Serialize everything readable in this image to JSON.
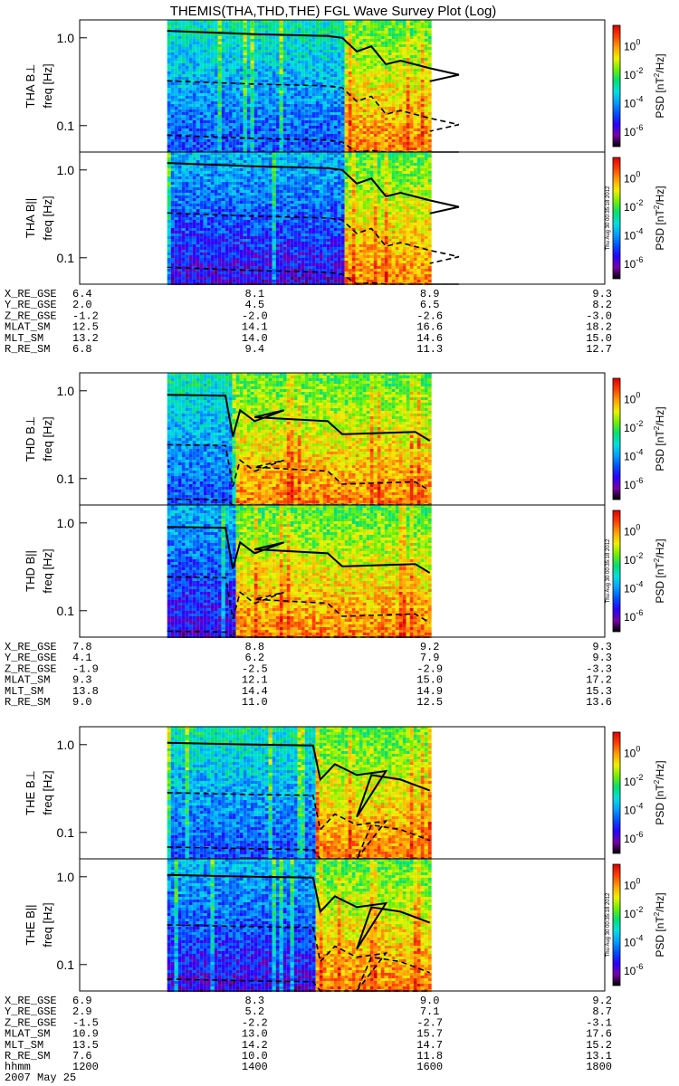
{
  "chart_data": {
    "type": "heatmap",
    "title": "THEMIS(THA,THD,THE) FGL Wave Survey Plot (Log)",
    "ylabel": "freq [Hz]",
    "ylim": [
      0.05,
      1.6
    ],
    "yscale": "log",
    "yticks": [
      "1.0",
      "0.1"
    ],
    "colorbar": {
      "label": "PSD [nT",
      "label_sup": "2",
      "label_tail": "/Hz]",
      "tick_bases": [
        "10",
        "10",
        "10",
        "10"
      ],
      "tick_exps": [
        "0",
        "-2",
        "-4",
        "-6"
      ],
      "range_log": [
        -7,
        1.5
      ],
      "colors": [
        "#000000",
        "#7a00a8",
        "#2a00ff",
        "#0050ff",
        "#00a0ff",
        "#00e0e0",
        "#00e070",
        "#70f000",
        "#f0f000",
        "#ffa000",
        "#ff4000",
        "#dd0000"
      ]
    },
    "time_range_hhmm": [
      1200,
      1800
    ],
    "timestamp": "Thu Aug 30 00:35:18 2012",
    "xaxis_label_hhmm": "hhmm",
    "xaxis_values_hhmm": [
      "1200",
      "1400",
      "1600",
      "1800"
    ],
    "date": "2007 May 25",
    "groups": [
      {
        "probe": "THA",
        "panels": [
          {
            "label": "THA B⊥"
          },
          {
            "label": "THA B||"
          }
        ],
        "data_start_hhmm": 1300,
        "data_end_hhmm": 1600,
        "onset_hhmm": 1500,
        "gyro_curve": {
          "t": [
            1300,
            1400,
            1450,
            1500,
            1510,
            1520,
            1530,
            1540,
            1560,
            1580,
            1600
          ],
          "f": [
            1.2,
            1.1,
            1.05,
            1.0,
            0.7,
            0.8,
            0.5,
            0.55,
            0.45,
            0.38,
            0.32
          ]
        },
        "ephemeris": {
          "rows": [
            {
              "label": "X_RE_GSE",
              "values": [
                "6.4",
                "8.1",
                "8.9",
                "9.3"
              ]
            },
            {
              "label": "Y_RE_GSE",
              "values": [
                "2.0",
                "4.5",
                "6.5",
                "8.2"
              ]
            },
            {
              "label": "Z_RE_GSE",
              "values": [
                "-1.2",
                "-2.0",
                "-2.6",
                "-3.0"
              ]
            },
            {
              "label": "MLAT_SM",
              "values": [
                "12.5",
                "14.1",
                "16.6",
                "18.2"
              ]
            },
            {
              "label": "MLT_SM",
              "values": [
                "13.2",
                "14.0",
                "14.6",
                "15.0"
              ]
            },
            {
              "label": "R_RE_SM",
              "values": [
                "6.8",
                "9.4",
                "11.3",
                "12.7"
              ]
            }
          ]
        }
      },
      {
        "probe": "THD",
        "panels": [
          {
            "label": "THD B⊥"
          },
          {
            "label": "THD B||"
          }
        ],
        "data_start_hhmm": 1300,
        "data_end_hhmm": 1600,
        "onset_hhmm": 1345,
        "gyro_curve": {
          "t": [
            1300,
            1340,
            1345,
            1350,
            1360,
            1380,
            1400,
            1450,
            1500,
            1550,
            1600
          ],
          "f": [
            0.9,
            0.88,
            0.3,
            0.6,
            0.45,
            0.6,
            0.5,
            0.45,
            0.32,
            0.34,
            0.27
          ]
        },
        "ephemeris": {
          "rows": [
            {
              "label": "X_RE_GSE",
              "values": [
                "7.8",
                "8.8",
                "9.2",
                "9.3"
              ]
            },
            {
              "label": "Y_RE_GSE",
              "values": [
                "4.1",
                "6.2",
                "7.9",
                "9.3"
              ]
            },
            {
              "label": "Z_RE_GSE",
              "values": [
                "-1.9",
                "-2.5",
                "-2.9",
                "-3.3"
              ]
            },
            {
              "label": "MLAT_SM",
              "values": [
                "9.3",
                "12.1",
                "15.0",
                "17.2"
              ]
            },
            {
              "label": "MLT_SM",
              "values": [
                "13.8",
                "14.4",
                "14.9",
                "15.3"
              ]
            },
            {
              "label": "R_RE_SM",
              "values": [
                "9.0",
                "11.0",
                "12.5",
                "13.6"
              ]
            }
          ]
        }
      },
      {
        "probe": "THE",
        "panels": [
          {
            "label": "THE B⊥"
          },
          {
            "label": "THE B||"
          }
        ],
        "data_start_hhmm": 1300,
        "data_end_hhmm": 1600,
        "onset_hhmm": 1440,
        "gyro_curve": {
          "t": [
            1300,
            1400,
            1440,
            1445,
            1455,
            1470,
            1490,
            1510,
            1520,
            1540,
            1600
          ],
          "f": [
            1.05,
            1.0,
            0.98,
            0.4,
            0.6,
            0.45,
            0.5,
            0.15,
            0.45,
            0.4,
            0.3
          ]
        },
        "ephemeris": {
          "rows": [
            {
              "label": "X_RE_GSE",
              "values": [
                "6.9",
                "8.3",
                "9.0",
                "9.2"
              ]
            },
            {
              "label": "Y_RE_GSE",
              "values": [
                "2.9",
                "5.2",
                "7.1",
                "8.7"
              ]
            },
            {
              "label": "Z_RE_GSE",
              "values": [
                "-1.5",
                "-2.2",
                "-2.7",
                "-3.1"
              ]
            },
            {
              "label": "MLAT_SM",
              "values": [
                "10.9",
                "13.0",
                "15.7",
                "17.6"
              ]
            },
            {
              "label": "MLT_SM",
              "values": [
                "13.5",
                "14.2",
                "14.7",
                "15.2"
              ]
            },
            {
              "label": "R_RE_SM",
              "values": [
                "7.6",
                "10.0",
                "11.8",
                "13.1"
              ]
            }
          ]
        }
      }
    ]
  }
}
